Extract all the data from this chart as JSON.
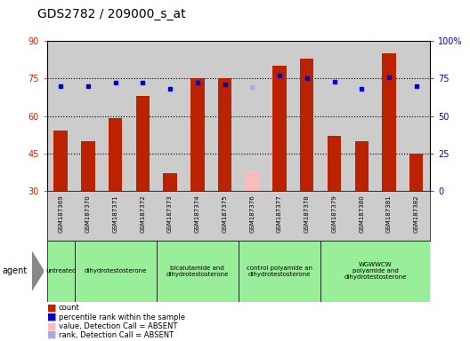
{
  "title": "GDS2782 / 209000_s_at",
  "samples": [
    "GSM187369",
    "GSM187370",
    "GSM187371",
    "GSM187372",
    "GSM187373",
    "GSM187374",
    "GSM187375",
    "GSM187376",
    "GSM187377",
    "GSM187378",
    "GSM187379",
    "GSM187380",
    "GSM187381",
    "GSM187382"
  ],
  "bar_values": [
    54,
    50,
    59,
    68,
    37,
    75,
    75,
    38,
    80,
    83,
    52,
    50,
    85,
    45
  ],
  "bar_absent": [
    false,
    false,
    false,
    false,
    false,
    false,
    false,
    true,
    false,
    false,
    false,
    false,
    false,
    false
  ],
  "rank_values": [
    70,
    70,
    72,
    72,
    68,
    72,
    71,
    69,
    77,
    75,
    73,
    68,
    76,
    70
  ],
  "rank_absent": [
    false,
    false,
    false,
    false,
    false,
    false,
    false,
    true,
    false,
    false,
    false,
    false,
    false,
    false
  ],
  "ylim_left": [
    30,
    90
  ],
  "ylim_right": [
    0,
    100
  ],
  "yticks_left": [
    30,
    45,
    60,
    75,
    90
  ],
  "yticks_right": [
    0,
    25,
    50,
    75,
    100
  ],
  "ytick_labels_left": [
    "30",
    "45",
    "60",
    "75",
    "90"
  ],
  "ytick_labels_right": [
    "0",
    "25",
    "50",
    "75",
    "100%"
  ],
  "hlines": [
    45,
    60,
    75
  ],
  "bar_color_present": "#bb2200",
  "bar_color_absent": "#ffbbbb",
  "rank_color_present": "#0000cc",
  "rank_color_absent": "#aaaadd",
  "agent_groups": [
    {
      "label": "untreated",
      "start": 0,
      "end": 1
    },
    {
      "label": "dihydrotestosterone",
      "start": 1,
      "end": 4
    },
    {
      "label": "bicalutamide and\ndihydrotestosterone",
      "start": 4,
      "end": 7
    },
    {
      "label": "control polyamide an\ndihydrotestosterone",
      "start": 7,
      "end": 10
    },
    {
      "label": "WGWWCW\npolyamide and\ndihydrotestosterone",
      "start": 10,
      "end": 14
    }
  ],
  "legend_items": [
    {
      "color": "#bb2200",
      "label": "count"
    },
    {
      "color": "#0000cc",
      "label": "percentile rank within the sample"
    },
    {
      "color": "#ffbbbb",
      "label": "value, Detection Call = ABSENT"
    },
    {
      "color": "#aaaadd",
      "label": "rank, Detection Call = ABSENT"
    }
  ],
  "plot_bg_color": "#cccccc",
  "sample_bg_color": "#cccccc",
  "group_bg_color": "#99ee99",
  "bar_width": 0.5,
  "n_samples": 14
}
